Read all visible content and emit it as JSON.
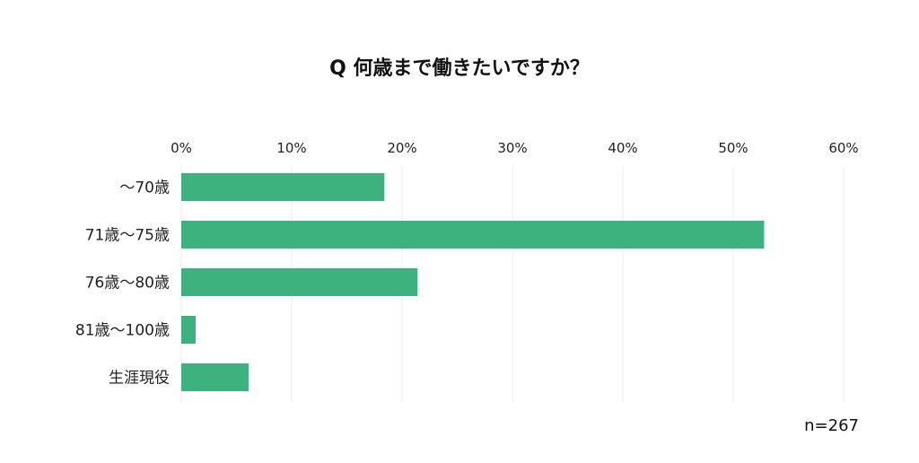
{
  "chart_data": {
    "type": "bar",
    "orientation": "horizontal",
    "title": "Q 何歳まで働きたいですか？",
    "categories": [
      "～70歳",
      "71歳～75歳",
      "76歳～80歳",
      "81歳～100歳",
      "生涯現役"
    ],
    "values": [
      18.4,
      52.8,
      21.4,
      1.3,
      6.1
    ],
    "x_unit": "%",
    "xlim": [
      0,
      60
    ],
    "x_ticks": [
      "0%",
      "10%",
      "20%",
      "30%",
      "40%",
      "50%",
      "60%"
    ],
    "x_tick_values": [
      0,
      10,
      20,
      30,
      40,
      50,
      60
    ],
    "x_axis_position": "top",
    "grid": true,
    "legend": "none",
    "bar_color": "#3db27f",
    "grid_color": "#eeeeee",
    "note": "n=267"
  }
}
